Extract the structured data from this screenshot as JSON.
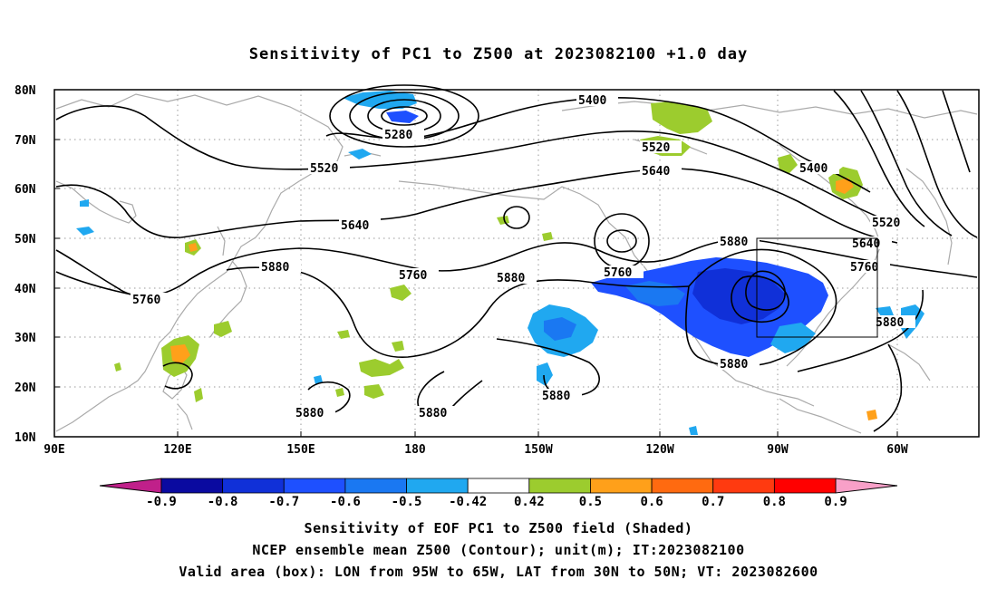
{
  "title": "Sensitivity of PC1 to Z500 at 2023082100 +1.0 day",
  "lat_labels": [
    "80N",
    "70N",
    "60N",
    "50N",
    "40N",
    "30N",
    "20N",
    "10N"
  ],
  "lon_labels": [
    "90E",
    "120E",
    "150E",
    "180",
    "150W",
    "120W",
    "90W",
    "60W"
  ],
  "contour_labels": {
    "c5280": "5280",
    "c5400_a": "5400",
    "c5400_b": "5400",
    "c5520_a": "5520",
    "c5520_b": "5520",
    "c5520_c": "5520",
    "c5640_a": "5640",
    "c5640_b": "5640",
    "c5640_c": "5640",
    "c5760_a": "5760",
    "c5760_b": "5760",
    "c5760_c": "5760",
    "c5760_d": "5760",
    "c5880_a": "5880",
    "c5880_b": "5880",
    "c5880_c": "5880",
    "c5880_d": "5880",
    "c5880_e": "5880",
    "c5880_f": "5880",
    "c5880_g": "5880",
    "c5880_h": "5880"
  },
  "colorbar": {
    "labels": [
      "-0.9",
      "-0.8",
      "-0.7",
      "-0.6",
      "-0.5",
      "-0.42",
      "0.42",
      "0.5",
      "0.6",
      "0.7",
      "0.8",
      "0.9"
    ],
    "colors": [
      "#0a0aa0",
      "#1030d8",
      "#1e50ff",
      "#1a78f2",
      "#20a8f0",
      "#ffffff",
      "#9ccc2e",
      "#ffa01a",
      "#ff6a10",
      "#ff3a10",
      "#ff0000"
    ],
    "low_end_color": "#c0208a",
    "high_end_color": "#f8a0c8"
  },
  "captions": {
    "line1": "Sensitivity of EOF PC1 to Z500 field (Shaded)",
    "line2": "NCEP ensemble mean Z500 (Contour); unit(m); IT:2023082100",
    "line3": "Valid area (box): LON from 95W to 65W, LAT from 30N to 50N; VT: 2023082600"
  },
  "colors": {
    "contour": "#000000",
    "coastline": "#aaaaaa",
    "negative_strong": "#1e50ff",
    "negative_weak": "#20a8f0",
    "positive_weak": "#9ccc2e",
    "positive_mid": "#ffa01a"
  }
}
